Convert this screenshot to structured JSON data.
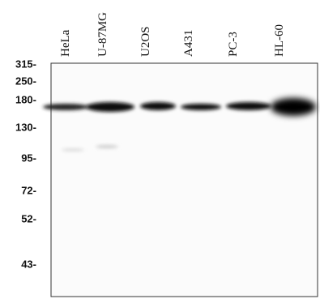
{
  "lanes": [
    "HeLa",
    "U-87MG",
    "U2OS",
    "A431",
    "PC-3",
    "HL-60"
  ],
  "markers": [
    "315-",
    "250-",
    "180-",
    "130-",
    "95-",
    "72-",
    "52-",
    "43-"
  ]
}
